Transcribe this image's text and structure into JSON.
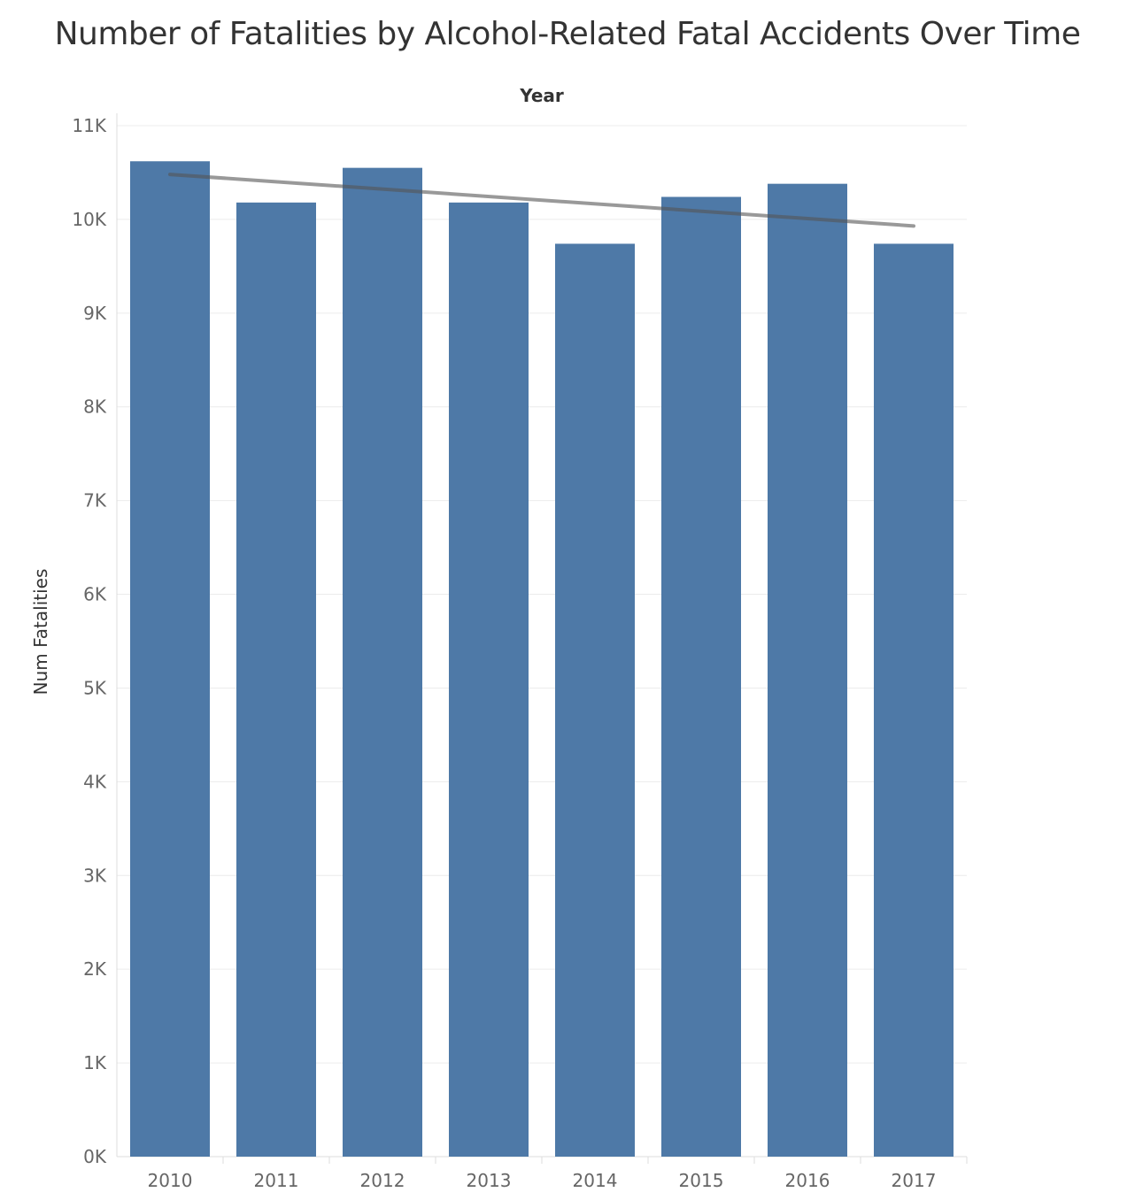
{
  "chart_data": {
    "type": "bar",
    "title": "Number of Fatalities by Alcohol-Related Fatal Accidents Over Time",
    "xlabel": "Year",
    "ylabel": "Num Fatalities",
    "categories": [
      "2010",
      "2011",
      "2012",
      "2013",
      "2014",
      "2015",
      "2016",
      "2017"
    ],
    "values": [
      10620,
      10180,
      10550,
      10180,
      9740,
      10240,
      10380,
      9740
    ],
    "ylim": [
      0,
      11000
    ],
    "yticks": [
      0,
      1000,
      2000,
      3000,
      4000,
      5000,
      6000,
      7000,
      8000,
      9000,
      10000,
      11000
    ],
    "ytick_labels": [
      "0K",
      "1K",
      "2K",
      "3K",
      "4K",
      "5K",
      "6K",
      "7K",
      "8K",
      "9K",
      "10K",
      "11K"
    ],
    "trend_line": {
      "start": 10480,
      "end": 9930
    },
    "xlabel_position": "top",
    "grid": true,
    "colors": {
      "bar": "#4e79a7",
      "trend": "#555555",
      "grid": "#ececec",
      "axis": "#dddddd"
    }
  }
}
